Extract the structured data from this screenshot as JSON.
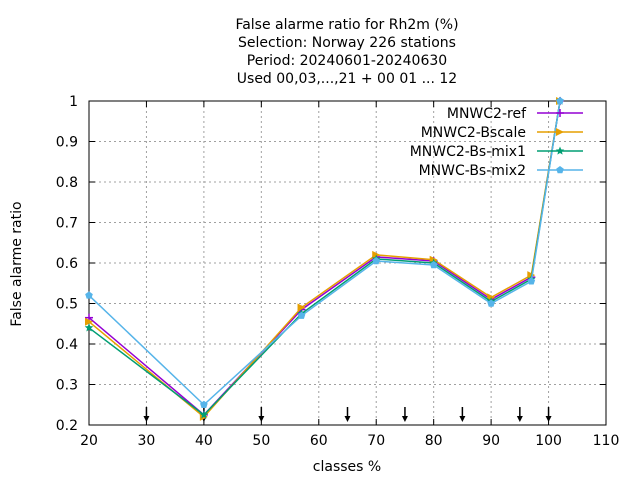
{
  "chart_data": {
    "type": "line",
    "title_lines": [
      "False alarme ratio  for Rh2m (%)",
      "Selection: Norway    226 stations",
      "Period: 20240601-20240630",
      "Used 00,03,...,21 + 00 01 ... 12"
    ],
    "xlabel": "classes %",
    "ylabel": "False alarme ratio",
    "xlim": [
      20,
      110
    ],
    "ylim": [
      0.2,
      1.0
    ],
    "xticks": [
      20,
      30,
      40,
      50,
      60,
      70,
      80,
      90,
      100,
      110
    ],
    "yticks": [
      0.2,
      0.3,
      0.4,
      0.5,
      0.6,
      0.7,
      0.8,
      0.9,
      1.0
    ],
    "ytick_labels": [
      "0.2",
      "0.3",
      "0.4",
      "0.5",
      "0.6",
      "0.7",
      "0.8",
      "0.9",
      "1"
    ],
    "grid": true,
    "legend_position": "top-right",
    "arrow_markers_x": [
      30,
      40,
      50,
      65,
      75,
      85,
      95,
      100
    ],
    "x": [
      20,
      40,
      57,
      70,
      80,
      90,
      97,
      102
    ],
    "series": [
      {
        "name": "MNWC2-ref",
        "color": "#9400d3",
        "marker": "plus",
        "values": [
          0.465,
          0.225,
          0.485,
          0.615,
          0.605,
          0.51,
          0.565,
          1.0
        ]
      },
      {
        "name": "MNWC2-Bscale",
        "color": "#e69f00",
        "marker": "triangle",
        "values": [
          0.455,
          0.22,
          0.49,
          0.62,
          0.608,
          0.515,
          0.57,
          1.0
        ]
      },
      {
        "name": "MNWC2-Bs-mix1",
        "color": "#009e73",
        "marker": "star",
        "values": [
          0.44,
          0.225,
          0.475,
          0.61,
          0.6,
          0.505,
          0.56,
          1.0
        ]
      },
      {
        "name": "MNWC-Bs-mix2",
        "color": "#56b4e9",
        "marker": "pentagon",
        "values": [
          0.52,
          0.25,
          0.47,
          0.605,
          0.595,
          0.5,
          0.555,
          1.0
        ]
      }
    ]
  }
}
